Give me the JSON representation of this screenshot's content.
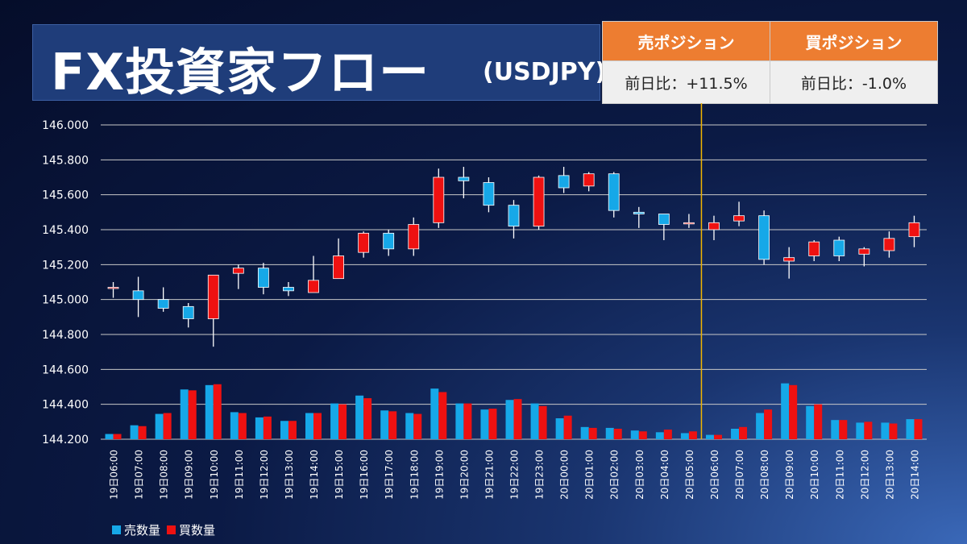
{
  "header": {
    "title": "FX投資家フロー",
    "subtitle": "(USDJPY)"
  },
  "positions": {
    "sell": {
      "label": "売ポジション",
      "change": "前日比：+11.5%"
    },
    "buy": {
      "label": "買ポジション",
      "change": "前日比：-1.0%"
    }
  },
  "colors": {
    "sell": "#16a8e8",
    "buy": "#ee1111",
    "grid": "#c8c8c8",
    "marker": "#f2b600",
    "header_orange": "#ed7d31",
    "title_bg": "#1f3d7a"
  },
  "chart_data": {
    "type": "candlestick",
    "y_ticks": [
      "146.000",
      "145.800",
      "145.600",
      "145.400",
      "145.200",
      "145.000",
      "144.800",
      "144.600",
      "144.400",
      "144.200"
    ],
    "ylim": [
      144.2,
      146.0
    ],
    "grid": true,
    "legend_position": "bottom-left",
    "x": [
      "19日06:00",
      "19日07:00",
      "19日08:00",
      "19日09:00",
      "19日10:00",
      "19日11:00",
      "19日12:00",
      "19日13:00",
      "19日14:00",
      "19日15:00",
      "19日16:00",
      "19日17:00",
      "19日18:00",
      "19日19:00",
      "19日20:00",
      "19日21:00",
      "19日22:00",
      "19日23:00",
      "20日00:00",
      "20日01:00",
      "20日02:00",
      "20日03:00",
      "20日04:00",
      "20日05:00",
      "20日06:00",
      "20日07:00",
      "20日08:00",
      "20日09:00",
      "20日10:00",
      "20日11:00",
      "20日12:00",
      "20日13:00",
      "20日14:00"
    ],
    "open": [
      145.07,
      145.05,
      145.0,
      144.96,
      144.89,
      145.15,
      145.18,
      145.07,
      145.04,
      145.12,
      145.27,
      145.38,
      145.29,
      145.44,
      145.7,
      145.67,
      145.54,
      145.42,
      145.71,
      145.65,
      145.72,
      145.5,
      145.49,
      145.44,
      145.4,
      145.45,
      145.48,
      145.22,
      145.25,
      145.34,
      145.26,
      145.28,
      145.36
    ],
    "high": [
      145.1,
      145.13,
      145.07,
      144.98,
      145.14,
      145.2,
      145.21,
      145.1,
      145.25,
      145.35,
      145.39,
      145.4,
      145.47,
      145.75,
      145.76,
      145.7,
      145.57,
      145.71,
      145.76,
      145.73,
      145.73,
      145.53,
      145.49,
      145.49,
      145.48,
      145.56,
      145.51,
      145.3,
      145.34,
      145.36,
      145.3,
      145.39,
      145.48
    ],
    "low": [
      145.01,
      144.9,
      144.93,
      144.84,
      144.73,
      145.06,
      145.03,
      145.02,
      145.04,
      145.12,
      145.24,
      145.25,
      145.25,
      145.41,
      145.58,
      145.5,
      145.35,
      145.4,
      145.61,
      145.62,
      145.47,
      145.41,
      145.34,
      145.41,
      145.34,
      145.42,
      145.2,
      145.12,
      145.22,
      145.22,
      145.19,
      145.24,
      145.3
    ],
    "close": [
      145.07,
      145.0,
      144.95,
      144.89,
      145.14,
      145.18,
      145.07,
      145.05,
      145.11,
      145.25,
      145.38,
      145.29,
      145.43,
      145.7,
      145.68,
      145.54,
      145.42,
      145.7,
      145.64,
      145.72,
      145.51,
      145.49,
      145.43,
      145.44,
      145.44,
      145.48,
      145.23,
      145.24,
      145.33,
      145.25,
      145.29,
      145.35,
      145.44
    ],
    "volume_series": [
      {
        "name": "売数量",
        "values": [
          144.23,
          144.28,
          144.345,
          144.485,
          144.51,
          144.355,
          144.325,
          144.305,
          144.35,
          144.405,
          144.45,
          144.365,
          144.35,
          144.49,
          144.405,
          144.37,
          144.425,
          144.405,
          144.32,
          144.27,
          144.265,
          144.25,
          144.24,
          144.235,
          144.225,
          144.26,
          144.35,
          144.52,
          144.39,
          144.31,
          144.295,
          144.295,
          144.315
        ]
      },
      {
        "name": "買数量",
        "values": [
          144.23,
          144.275,
          144.35,
          144.48,
          144.515,
          144.35,
          144.33,
          144.305,
          144.35,
          144.4,
          144.435,
          144.36,
          144.345,
          144.47,
          144.405,
          144.375,
          144.43,
          144.39,
          144.335,
          144.265,
          144.26,
          144.245,
          144.255,
          144.245,
          144.225,
          144.27,
          144.37,
          144.51,
          144.4,
          144.31,
          144.3,
          144.29,
          144.315
        ]
      }
    ],
    "vertical_marker_category": "20日06:00"
  }
}
